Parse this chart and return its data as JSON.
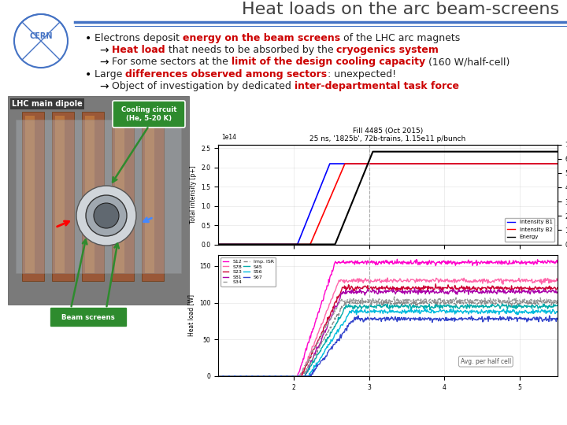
{
  "title": "Heat loads on the arc beam-screens",
  "title_color": "#404040",
  "title_fontsize": 16,
  "header_line_color": "#4472C4",
  "background_color": "#ffffff",
  "cern_blue": "#4472C4",
  "dark_red": "#CC0000",
  "green_box": "#2E8B2E",
  "text_dark": "#222222",
  "fill_title": "Fill 4485 (Oct 2015)",
  "fill_subtitle_bold": "1825b"
}
